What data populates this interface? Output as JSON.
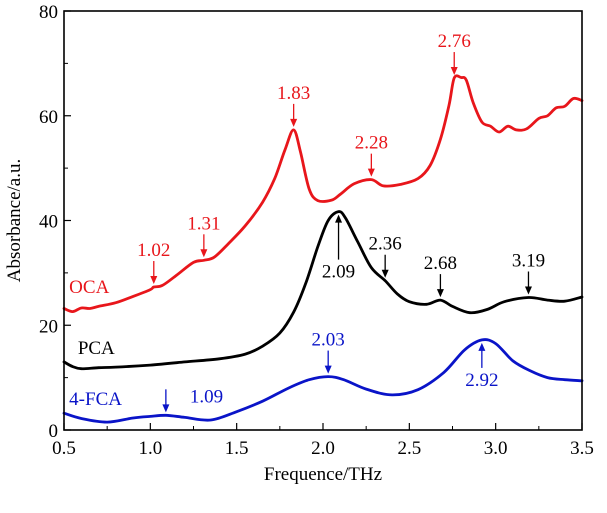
{
  "chart_data": {
    "type": "line",
    "title": "",
    "xlabel": "Frequence/THz",
    "ylabel": "Absorbance/a.u.",
    "xlim": [
      0.5,
      3.5
    ],
    "ylim": [
      0,
      80
    ],
    "xticks": [
      0.5,
      1.0,
      1.5,
      2.0,
      2.5,
      3.0,
      3.5
    ],
    "xtick_labels": [
      "0.5",
      "1.0",
      "1.5",
      "2.0",
      "2.5",
      "3.0",
      "3.5"
    ],
    "yticks": [
      0,
      20,
      40,
      60,
      80
    ],
    "ytick_labels": [
      "0",
      "20",
      "40",
      "60",
      "80"
    ],
    "grid": false,
    "legend": "inline labels at left of each curve",
    "series": [
      {
        "name": "OCA",
        "color": "#e8161b",
        "label_anchor": [
          0.53,
          26.2
        ],
        "x": [
          0.5,
          0.55,
          0.6,
          0.65,
          0.7,
          0.8,
          0.9,
          1.0,
          1.02,
          1.07,
          1.15,
          1.25,
          1.31,
          1.37,
          1.45,
          1.55,
          1.65,
          1.72,
          1.78,
          1.83,
          1.87,
          1.92,
          1.97,
          2.05,
          2.1,
          2.18,
          2.28,
          2.35,
          2.45,
          2.55,
          2.62,
          2.68,
          2.73,
          2.76,
          2.8,
          2.83,
          2.87,
          2.92,
          2.97,
          3.02,
          3.07,
          3.12,
          3.18,
          3.25,
          3.3,
          3.35,
          3.4,
          3.45,
          3.5
        ],
        "values": [
          23.2,
          22.6,
          23.3,
          23.2,
          23.6,
          24.3,
          25.5,
          26.8,
          27.3,
          27.6,
          29.5,
          32.0,
          32.4,
          33.0,
          35.5,
          39.0,
          43.5,
          48.0,
          53.5,
          57.3,
          53.0,
          46.0,
          43.8,
          43.9,
          45.0,
          47.0,
          47.8,
          46.6,
          46.9,
          48.0,
          50.5,
          55.5,
          62.0,
          67.2,
          67.3,
          66.8,
          62.5,
          58.8,
          58.0,
          56.9,
          58.0,
          57.3,
          57.5,
          59.5,
          60.0,
          61.5,
          61.8,
          63.3,
          62.9
        ]
      },
      {
        "name": "PCA",
        "color": "#000000",
        "label_anchor": [
          0.58,
          14.5
        ],
        "x": [
          0.5,
          0.55,
          0.6,
          0.7,
          0.8,
          1.0,
          1.2,
          1.4,
          1.55,
          1.65,
          1.75,
          1.83,
          1.9,
          1.97,
          2.03,
          2.09,
          2.13,
          2.2,
          2.28,
          2.36,
          2.43,
          2.5,
          2.6,
          2.68,
          2.75,
          2.85,
          2.95,
          3.05,
          3.19,
          3.3,
          3.4,
          3.5
        ],
        "values": [
          13.0,
          12.1,
          11.7,
          11.9,
          12.0,
          12.4,
          13.0,
          13.6,
          14.5,
          16.0,
          18.5,
          22.5,
          28.0,
          35.0,
          40.0,
          41.7,
          40.5,
          36.0,
          31.0,
          28.5,
          26.0,
          24.5,
          24.0,
          24.8,
          23.6,
          22.4,
          23.0,
          24.5,
          25.3,
          24.8,
          24.6,
          25.4
        ]
      },
      {
        "name": "4-FCA",
        "color": "#0a14c8",
        "label_anchor": [
          0.53,
          4.8
        ],
        "x": [
          0.5,
          0.6,
          0.75,
          0.9,
          1.0,
          1.09,
          1.2,
          1.35,
          1.5,
          1.65,
          1.8,
          1.92,
          2.03,
          2.12,
          2.25,
          2.4,
          2.55,
          2.7,
          2.82,
          2.92,
          3.0,
          3.1,
          3.2,
          3.3,
          3.4,
          3.5
        ],
        "values": [
          3.2,
          2.2,
          1.5,
          2.3,
          2.6,
          2.8,
          2.4,
          1.9,
          3.5,
          5.5,
          8.0,
          9.6,
          10.2,
          9.6,
          7.8,
          6.7,
          7.7,
          11.0,
          15.3,
          17.2,
          16.5,
          13.2,
          11.3,
          10.0,
          9.6,
          9.4
        ]
      }
    ],
    "annotations": [
      {
        "text": "1.02",
        "series": "OCA",
        "x": 1.02,
        "y": 27.3,
        "arrow": "down",
        "color": "#e8161b"
      },
      {
        "text": "1.31",
        "series": "OCA",
        "x": 1.31,
        "y": 32.4,
        "arrow": "down",
        "color": "#e8161b"
      },
      {
        "text": "1.83",
        "series": "OCA",
        "x": 1.83,
        "y": 57.3,
        "arrow": "down",
        "color": "#e8161b"
      },
      {
        "text": "2.28",
        "series": "OCA",
        "x": 2.28,
        "y": 47.8,
        "arrow": "down",
        "color": "#e8161b"
      },
      {
        "text": "2.76",
        "series": "OCA",
        "x": 2.76,
        "y": 67.2,
        "arrow": "down",
        "color": "#e8161b"
      },
      {
        "text": "2.09",
        "series": "PCA",
        "x": 2.09,
        "y": 41.7,
        "arrow": "up",
        "color": "#000000"
      },
      {
        "text": "2.36",
        "series": "PCA",
        "x": 2.36,
        "y": 28.5,
        "arrow": "down",
        "color": "#000000"
      },
      {
        "text": "2.68",
        "series": "PCA",
        "x": 2.68,
        "y": 24.8,
        "arrow": "down",
        "color": "#000000"
      },
      {
        "text": "3.19",
        "series": "PCA",
        "x": 3.19,
        "y": 25.3,
        "arrow": "down",
        "color": "#000000"
      },
      {
        "text": "1.09",
        "series": "4-FCA",
        "x": 1.09,
        "y": 2.8,
        "arrow": "down",
        "color": "#0a14c8"
      },
      {
        "text": "2.03",
        "series": "4-FCA",
        "x": 2.03,
        "y": 10.2,
        "arrow": "down",
        "color": "#0a14c8"
      },
      {
        "text": "2.92",
        "series": "4-FCA",
        "x": 2.92,
        "y": 17.2,
        "arrow": "up",
        "color": "#0a14c8"
      }
    ]
  }
}
